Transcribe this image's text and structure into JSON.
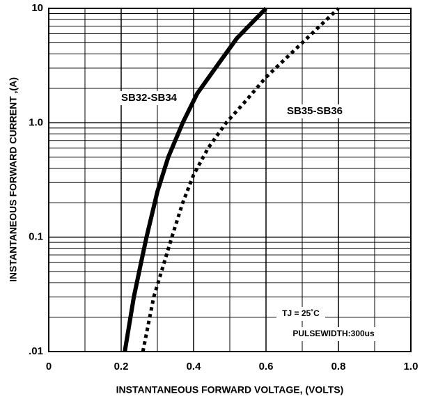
{
  "chart_data": {
    "type": "line",
    "log_y": true,
    "grid": true,
    "x_label": "INSTANTANEOUS FORWARD VOLTAGE, (VOLTS)",
    "y_label": "INSTANTANEOUS  FORWARD CURRENT ,(A)",
    "xlim": [
      0,
      1.0
    ],
    "ylim": [
      0.01,
      10
    ],
    "xticks": [
      0,
      0.2,
      0.4,
      0.6,
      0.8,
      {
        "value": 1.0,
        "label": "1.0"
      }
    ],
    "yticks": [
      {
        "value": 0.01,
        "label": ".01"
      },
      0.1,
      {
        "value": 1,
        "label": "1.0"
      },
      10
    ],
    "x_minor_grid": [
      0.1,
      0.3,
      0.5,
      0.7,
      0.9
    ],
    "y_minor_grid": [
      0.02,
      0.03,
      0.04,
      0.05,
      0.06,
      0.07,
      0.08,
      0.09,
      0.2,
      0.3,
      0.4,
      0.5,
      0.6,
      0.7,
      0.8,
      0.9,
      2,
      3,
      4,
      5,
      6,
      7,
      8,
      9
    ],
    "series": [
      {
        "name": "SB32-SB34",
        "color": "#000000",
        "line_style": "solid",
        "x": [
          0.21,
          0.235,
          0.255,
          0.27,
          0.3,
          0.33,
          0.37,
          0.41,
          0.46,
          0.52,
          0.6
        ],
        "values": [
          0.01,
          0.03,
          0.06,
          0.1,
          0.25,
          0.5,
          1.0,
          1.8,
          3.0,
          5.5,
          10
        ]
      },
      {
        "name": "SB35-SB36",
        "color": "#000000",
        "line_style": "dotted",
        "x": [
          0.26,
          0.29,
          0.34,
          0.37,
          0.4,
          0.44,
          0.49,
          0.54,
          0.6,
          0.7,
          0.8
        ],
        "values": [
          0.01,
          0.03,
          0.1,
          0.2,
          0.35,
          0.6,
          1.0,
          1.5,
          2.5,
          5.0,
          10
        ]
      }
    ],
    "annotations": [
      "TJ = 25˚C",
      "PULSEWIDTH:300us"
    ]
  }
}
